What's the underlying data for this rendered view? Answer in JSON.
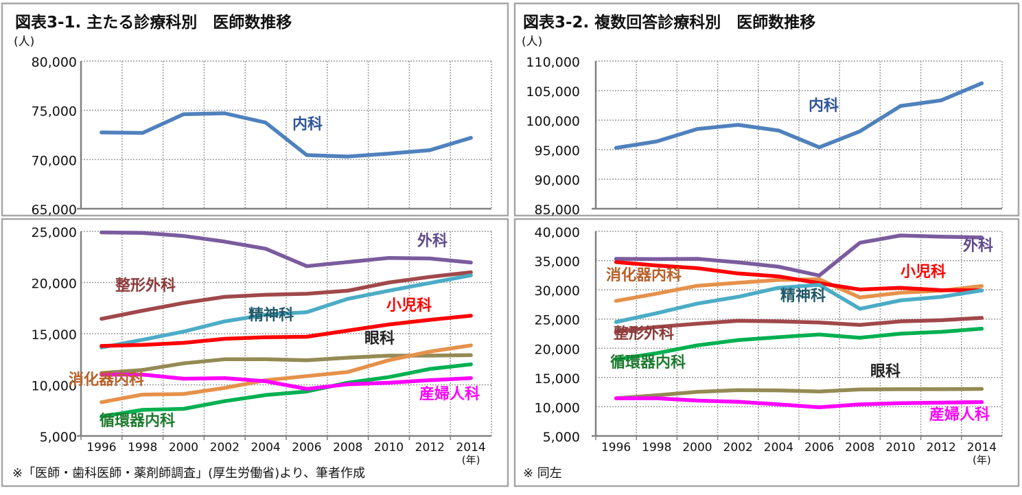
{
  "panels": [
    {
      "title": "図表3-1. 主たる診療科別　医師数推移",
      "unit": "(人)",
      "footnote": "※「医師・歯科医師・薬剤師調査」(厚生労働省)より、筆者作成",
      "x_unit": "(年)"
    },
    {
      "title": "図表3-2. 複数回答診療科別　医師数推移",
      "unit": "(人)",
      "footnote": "※ 同左",
      "x_unit": "(年)"
    }
  ],
  "chart_data": [
    {
      "type": "line",
      "panel": 0,
      "categories": [
        "1996",
        "1998",
        "2000",
        "2002",
        "2004",
        "2006",
        "2008",
        "2010",
        "2012",
        "2014"
      ],
      "show_x_labels": false,
      "ylim": [
        65000,
        80000
      ],
      "yticks": [
        "65,000",
        "70,000",
        "75,000",
        "80,000"
      ],
      "grid": true,
      "series": [
        {
          "name": "内科",
          "color": "#4f81bd",
          "label_color": "#2f5597",
          "values": [
            72750,
            72700,
            74600,
            74700,
            73750,
            70450,
            70300,
            70600,
            70950,
            72200
          ]
        }
      ]
    },
    {
      "type": "line",
      "panel": 0,
      "categories": [
        "1996",
        "1998",
        "2000",
        "2002",
        "2004",
        "2006",
        "2008",
        "2010",
        "2012",
        "2014"
      ],
      "show_x_labels": true,
      "ylim": [
        5000,
        25000
      ],
      "yticks": [
        "5,000",
        "10,000",
        "15,000",
        "20,000",
        "25,000"
      ],
      "grid": true,
      "series": [
        {
          "name": "外科",
          "color": "#7a5c9e",
          "label_color": "#5f4a8b",
          "values": [
            24900,
            24850,
            24550,
            24000,
            23300,
            21600,
            22000,
            22400,
            22350,
            21950
          ]
        },
        {
          "name": "整形外科",
          "color": "#a0484a",
          "label_color": "#8b3a3a",
          "values": [
            16450,
            17250,
            18000,
            18600,
            18800,
            18900,
            19200,
            20000,
            20550,
            21000
          ]
        },
        {
          "name": "精神科",
          "color": "#4bacc6",
          "label_color": "#215968",
          "values": [
            13650,
            14400,
            15200,
            16200,
            16850,
            17100,
            18400,
            19200,
            19950,
            20700
          ]
        },
        {
          "name": "小児科",
          "color": "#ff0000",
          "label_color": "#ff0000",
          "values": [
            13800,
            13900,
            14100,
            14500,
            14650,
            14700,
            15300,
            15900,
            16350,
            16750
          ]
        },
        {
          "name": "眼科",
          "color": "#948a54",
          "label_color": "#222222",
          "values": [
            11150,
            11450,
            12100,
            12500,
            12500,
            12400,
            12650,
            12850,
            12850,
            12900
          ]
        },
        {
          "name": "消化器内科",
          "color": "#e6914b",
          "label_color": "#b8612a",
          "values": [
            8300,
            9050,
            9100,
            9700,
            10450,
            10850,
            11250,
            12400,
            13250,
            13850
          ]
        },
        {
          "name": "循環器内科",
          "color": "#00b050",
          "label_color": "#1e7a2e",
          "values": [
            6900,
            7550,
            7650,
            8400,
            9000,
            9350,
            10200,
            10750,
            11550,
            12000
          ]
        },
        {
          "name": "産婦人科",
          "color": "#ff00ff",
          "label_color": "#ff00ff",
          "values": [
            11000,
            11000,
            10600,
            10650,
            10350,
            9600,
            10050,
            10200,
            10450,
            10650
          ]
        }
      ]
    },
    {
      "type": "line",
      "panel": 1,
      "categories": [
        "1996",
        "1998",
        "2000",
        "2002",
        "2004",
        "2006",
        "2008",
        "2010",
        "2012",
        "2014"
      ],
      "show_x_labels": false,
      "ylim": [
        85000,
        110000
      ],
      "yticks": [
        "85,000",
        "90,000",
        "95,000",
        "100,000",
        "105,000",
        "110,000"
      ],
      "grid": true,
      "series": [
        {
          "name": "内科",
          "color": "#4f81bd",
          "label_color": "#2f5597",
          "values": [
            95300,
            96400,
            98500,
            99200,
            98250,
            95400,
            98100,
            102400,
            103350,
            106250
          ]
        }
      ]
    },
    {
      "type": "line",
      "panel": 1,
      "categories": [
        "1996",
        "1998",
        "2000",
        "2002",
        "2004",
        "2006",
        "2008",
        "2010",
        "2012",
        "2014"
      ],
      "show_x_labels": true,
      "ylim": [
        5000,
        40000
      ],
      "yticks": [
        "5,000",
        "10,000",
        "15,000",
        "20,000",
        "25,000",
        "30,000",
        "35,000",
        "40,000"
      ],
      "grid": true,
      "series": [
        {
          "name": "外科",
          "color": "#7a5c9e",
          "label_color": "#5f4a8b",
          "values": [
            35300,
            35250,
            35300,
            34700,
            33950,
            32450,
            38050,
            39300,
            39100,
            38950
          ]
        },
        {
          "name": "消化器内科",
          "color": "#e6914b",
          "label_color": "#b8612a",
          "values": [
            28100,
            29350,
            30700,
            31200,
            31700,
            31800,
            28700,
            29500,
            29850,
            30650
          ]
        },
        {
          "name": "小児科",
          "color": "#ff0000",
          "label_color": "#ff0000",
          "values": [
            34750,
            34150,
            33700,
            32800,
            32300,
            31150,
            30050,
            30350,
            29950,
            29900
          ]
        },
        {
          "name": "精神科",
          "color": "#4bacc6",
          "label_color": "#215968",
          "values": [
            24500,
            26000,
            27650,
            28800,
            30350,
            30850,
            26750,
            28200,
            28800,
            29900
          ]
        },
        {
          "name": "整形外科",
          "color": "#a0484a",
          "label_color": "#8b3a3a",
          "values": [
            22850,
            23650,
            24200,
            24700,
            24600,
            24400,
            24000,
            24600,
            24800,
            25200
          ]
        },
        {
          "name": "循環器内科",
          "color": "#00b050",
          "label_color": "#1e7a2e",
          "values": [
            18100,
            19150,
            20500,
            21400,
            21900,
            22350,
            21800,
            22500,
            22800,
            23350
          ]
        },
        {
          "name": "眼科",
          "color": "#948a54",
          "label_color": "#222222",
          "values": [
            11450,
            11950,
            12550,
            12850,
            12800,
            12600,
            12950,
            13000,
            13000,
            13050
          ]
        },
        {
          "name": "産婦人科",
          "color": "#ff00ff",
          "label_color": "#ff00ff",
          "values": [
            11450,
            11450,
            11050,
            10850,
            10400,
            9900,
            10400,
            10600,
            10700,
            10800
          ]
        }
      ]
    }
  ]
}
